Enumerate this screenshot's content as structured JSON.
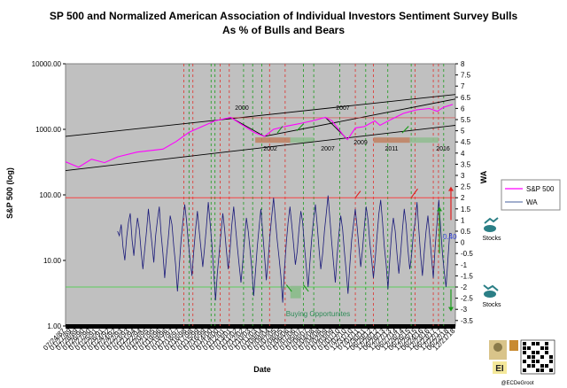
{
  "chart_data": {
    "type": "line",
    "title_line1": "SP 500 and Normalized American Association of Individual Investors Sentiment Survey Bulls",
    "title_line2": "As % of Bulls and Bears",
    "xlabel": "Date",
    "ylabel_left": "S&P 500 (log)",
    "ylabel_right": "WA",
    "y_left_ticks": [
      "10000.00",
      "1000.00",
      "100.00",
      "10.00",
      "1.00"
    ],
    "y_right_ticks": [
      "8",
      "7.5",
      "7",
      "6.5",
      "6",
      "5.5",
      "5",
      "4.5",
      "4",
      "3.5",
      "3",
      "2.5",
      "2",
      "1.5",
      "1",
      "0.5",
      "0",
      "-0.5",
      "-1",
      "-1.5",
      "-2",
      "-2.5",
      "-3",
      "-3.5"
    ],
    "x_ticks": [
      "07/24/87",
      "01/27/89",
      "07/28/89",
      "01/26/90",
      "07/27/90",
      "01/25/91",
      "07/26/91",
      "01/24/92",
      "07/24/92",
      "01/22/93",
      "07/23/93",
      "01/21/94",
      "07/22/94",
      "01/20/95",
      "07/21/95",
      "01/19/96",
      "07/19/96",
      "01/17/97",
      "07/18/97",
      "01/16/98",
      "07/17/98",
      "01/15/99",
      "07/16/99",
      "01/14/00",
      "07/14/00",
      "01/12/01",
      "07/13/01",
      "01/11/02",
      "07/12/02",
      "01/10/03",
      "07/11/03",
      "01/09/04",
      "07/09/04",
      "01/07/05",
      "07/08/05",
      "01/06/06",
      "07/07/06",
      "01/05/07",
      "07/06/07",
      "01/04/08",
      "07/04/08",
      "01/02/09",
      "07/03/09",
      "01/01/10",
      "07/02/10",
      "12/31/10",
      "07/01/11",
      "12/30/11",
      "06/29/12",
      "12/28/12",
      "06/28/13",
      "12/27/13",
      "06/27/14",
      "12/26/14",
      "06/26/15",
      "12/25/15",
      "06/24/16",
      "12/23/16",
      "06/23/17",
      "12/22/17",
      "06/22/18",
      "12/21/18"
    ],
    "legend": [
      "S&P 500",
      "WA"
    ],
    "annotations": {
      "years": [
        "2000",
        "2007",
        "2002",
        "2009",
        "2007",
        "2011",
        "2016"
      ],
      "value_label": "0.40",
      "buying_label": "Buying Opportunites",
      "stocks_label": "Stocks",
      "credit": "@ECDeGroot",
      "badge": "EI"
    },
    "series": [
      {
        "name": "S&P 500",
        "points": [
          [
            1987.5,
            320
          ],
          [
            1988.5,
            265
          ],
          [
            1989.5,
            350
          ],
          [
            1990.5,
            310
          ],
          [
            1991.5,
            380
          ],
          [
            1993,
            450
          ],
          [
            1995,
            500
          ],
          [
            1996,
            650
          ],
          [
            1997,
            900
          ],
          [
            1998,
            1100
          ],
          [
            1999,
            1350
          ],
          [
            2000.2,
            1520
          ],
          [
            2001,
            1200
          ],
          [
            2002,
            900
          ],
          [
            2002.8,
            780
          ],
          [
            2003.5,
            1000
          ],
          [
            2004.5,
            1120
          ],
          [
            2005.5,
            1220
          ],
          [
            2006.5,
            1350
          ],
          [
            2007.5,
            1520
          ],
          [
            2008,
            1350
          ],
          [
            2008.8,
            850
          ],
          [
            2009.2,
            700
          ],
          [
            2009.8,
            1050
          ],
          [
            2010.5,
            1100
          ],
          [
            2011.3,
            1350
          ],
          [
            2011.7,
            1150
          ],
          [
            2012.5,
            1400
          ],
          [
            2013.5,
            1750
          ],
          [
            2014.5,
            1980
          ],
          [
            2015.5,
            2080
          ],
          [
            2016.1,
            1880
          ],
          [
            2016.6,
            2180
          ],
          [
            2017.3,
            2400
          ]
        ]
      },
      {
        "name": "WA",
        "values": [
          0.5,
          0.3,
          0.8,
          -0.2,
          -0.8,
          0.2,
          0.9,
          1.3,
          0.1,
          -0.6,
          0.4,
          1.1,
          0.6,
          -0.4,
          -1.2,
          -0.3,
          0.5,
          1.5,
          0.7,
          -0.1,
          -0.9,
          0.3,
          1.0,
          1.6,
          0.4,
          -0.5,
          -1.6,
          -0.6,
          0.2,
          1.2,
          0.8,
          -0.2,
          -1.0,
          -2.2,
          -1.1,
          0.1,
          0.9,
          1.7,
          1.0,
          0.0,
          -0.8,
          -1.5,
          -0.4,
          0.6,
          1.4,
          0.5,
          -0.3,
          -1.1,
          -0.2,
          0.7,
          1.8,
          0.9,
          -0.1,
          -1.3,
          -2.6,
          -1.4,
          -0.5,
          0.4,
          1.3,
          0.6,
          -0.4,
          -1.2,
          -0.3,
          0.8,
          1.6,
          0.7,
          -0.2,
          -1.0,
          -1.8,
          -0.9,
          0.2,
          1.1,
          0.5,
          -0.3,
          -1.2,
          -2.4,
          -1.3,
          -0.2,
          0.7,
          1.5,
          0.4,
          -0.6,
          -1.7,
          -0.8,
          0.3,
          1.2,
          2.0,
          1.0,
          0.1,
          -0.7,
          -1.5,
          -2.7,
          -1.2,
          0.0,
          0.9,
          1.6,
          0.8,
          -0.1,
          -1.0,
          -0.4,
          0.6,
          1.4,
          0.9,
          -0.2,
          -1.1,
          -2.0,
          -0.9,
          0.2,
          1.0,
          1.7,
          0.8,
          -0.3,
          -1.2,
          -0.5,
          0.5,
          1.3,
          2.1,
          1.1,
          0.0,
          -0.9,
          -1.8,
          -0.6,
          0.4,
          1.2,
          0.6,
          -0.4,
          -1.3,
          -2.3,
          -1.0,
          0.1,
          0.8,
          1.5,
          0.7,
          -0.2,
          -1.1,
          -0.3,
          0.7,
          1.6,
          1.0,
          0.0,
          -0.8,
          -1.6,
          -0.7,
          0.3,
          1.3,
          1.9,
          0.9,
          -0.2,
          -1.0,
          -2.1,
          -0.8,
          0.4,
          1.1,
          0.5,
          -0.5,
          -1.4,
          -0.5,
          0.6,
          1.5,
          0.8,
          -0.3,
          -1.2,
          -0.6,
          0.4,
          0.9,
          1.8,
          0.6,
          -0.6,
          -1.5,
          -0.4,
          0.5,
          1.2,
          0.3,
          -0.7,
          -1.6,
          -0.2,
          0.8,
          1.9,
          0.7,
          -0.5,
          -1.3,
          -2.0,
          -0.8,
          0.4,
          0.4
        ]
      }
    ]
  }
}
